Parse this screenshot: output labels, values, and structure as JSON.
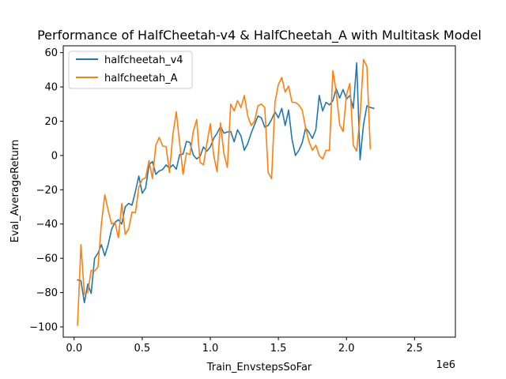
{
  "chart_data": {
    "type": "line",
    "title": "Performance of HalfCheetah-v4 & HalfCheetah_A with Multitask Model",
    "xlabel": "Train_EnvstepsSoFar",
    "ylabel": "Eval_AverageReturn",
    "x_offset_label": "1e6",
    "xlim": [
      -0.08,
      2.8
    ],
    "ylim": [
      -106,
      64
    ],
    "xticks": [
      0.0,
      0.5,
      1.0,
      1.5,
      2.0,
      2.5
    ],
    "xtick_labels": [
      "0.0",
      "0.5",
      "1.0",
      "1.5",
      "2.0",
      "2.5"
    ],
    "yticks": [
      -100,
      -80,
      -60,
      -40,
      -20,
      0,
      20,
      40,
      60
    ],
    "ytick_labels": [
      "−100",
      "−80",
      "−60",
      "−40",
      "−20",
      "0",
      "20",
      "40",
      "60"
    ],
    "grid": false,
    "legend_position": "top-left",
    "series": [
      {
        "name": "halfcheetah_v4",
        "color": "#1f77b4",
        "points": [
          [
            0.025,
            -72.6
          ],
          [
            0.05,
            -73
          ],
          [
            0.075,
            -85.9
          ],
          [
            0.1,
            -75
          ],
          [
            0.125,
            -80.5
          ],
          [
            0.15,
            -60
          ],
          [
            0.175,
            -57
          ],
          [
            0.2,
            -52
          ],
          [
            0.225,
            -58.5
          ],
          [
            0.25,
            -52
          ],
          [
            0.275,
            -43
          ],
          [
            0.3,
            -39
          ],
          [
            0.325,
            -37.5
          ],
          [
            0.35,
            -40
          ],
          [
            0.375,
            -30
          ],
          [
            0.4,
            -28
          ],
          [
            0.425,
            -29
          ],
          [
            0.45,
            -21
          ],
          [
            0.475,
            -12
          ],
          [
            0.5,
            -22
          ],
          [
            0.525,
            -19
          ],
          [
            0.55,
            -5.5
          ],
          [
            0.575,
            -3.5
          ],
          [
            0.6,
            -11
          ],
          [
            0.625,
            -9
          ],
          [
            0.65,
            -8.2
          ],
          [
            0.675,
            -5.5
          ],
          [
            0.7,
            -7.5
          ],
          [
            0.725,
            -5.4
          ],
          [
            0.75,
            -8
          ],
          [
            0.775,
            0.5
          ],
          [
            0.8,
            0.8
          ],
          [
            0.825,
            8.2
          ],
          [
            0.85,
            7.6
          ],
          [
            0.875,
            0.3
          ],
          [
            0.9,
            -2
          ],
          [
            0.925,
            -0.5
          ],
          [
            0.95,
            5
          ],
          [
            0.975,
            2.5
          ],
          [
            1.0,
            5
          ],
          [
            1.025,
            10
          ],
          [
            1.05,
            13
          ],
          [
            1.075,
            17
          ],
          [
            1.1,
            13
          ],
          [
            1.125,
            13.7
          ],
          [
            1.15,
            14
          ],
          [
            1.175,
            8
          ],
          [
            1.2,
            15
          ],
          [
            1.225,
            11.5
          ],
          [
            1.25,
            3
          ],
          [
            1.275,
            7
          ],
          [
            1.3,
            13
          ],
          [
            1.325,
            18
          ],
          [
            1.35,
            23
          ],
          [
            1.375,
            22
          ],
          [
            1.4,
            16.5
          ],
          [
            1.425,
            17.5
          ],
          [
            1.45,
            21
          ],
          [
            1.475,
            25.5
          ],
          [
            1.5,
            22
          ],
          [
            1.525,
            27.5
          ],
          [
            1.55,
            17.5
          ],
          [
            1.575,
            26.5
          ],
          [
            1.6,
            9.5
          ],
          [
            1.625,
            0
          ],
          [
            1.65,
            3
          ],
          [
            1.675,
            7.5
          ],
          [
            1.7,
            16
          ],
          [
            1.725,
            13.5
          ],
          [
            1.75,
            10
          ],
          [
            1.775,
            15
          ],
          [
            1.8,
            35
          ],
          [
            1.825,
            26
          ],
          [
            1.85,
            31
          ],
          [
            1.875,
            29.5
          ],
          [
            1.9,
            32
          ],
          [
            1.925,
            39
          ],
          [
            1.95,
            33.5
          ],
          [
            1.975,
            38.5
          ],
          [
            2.0,
            33
          ],
          [
            2.025,
            35
          ],
          [
            2.05,
            27.5
          ],
          [
            2.075,
            54
          ],
          [
            2.1,
            -2.5
          ],
          [
            2.125,
            18
          ],
          [
            2.15,
            29
          ],
          [
            2.175,
            28
          ],
          [
            2.2,
            27.5
          ]
        ]
      },
      {
        "name": "halfcheetah_A",
        "color": "#ff7f0e",
        "points": [
          [
            0.025,
            -99
          ],
          [
            0.05,
            -52
          ],
          [
            0.075,
            -81
          ],
          [
            0.1,
            -80
          ],
          [
            0.125,
            -67
          ],
          [
            0.15,
            -67.5
          ],
          [
            0.175,
            -65
          ],
          [
            0.2,
            -40
          ],
          [
            0.225,
            -23
          ],
          [
            0.25,
            -32
          ],
          [
            0.275,
            -40
          ],
          [
            0.3,
            -39
          ],
          [
            0.325,
            -48
          ],
          [
            0.35,
            -28
          ],
          [
            0.375,
            -46
          ],
          [
            0.4,
            -43
          ],
          [
            0.425,
            -33
          ],
          [
            0.45,
            -33.5
          ],
          [
            0.475,
            -18.5
          ],
          [
            0.5,
            -14
          ],
          [
            0.525,
            -13
          ],
          [
            0.55,
            -3
          ],
          [
            0.575,
            -13.5
          ],
          [
            0.6,
            6
          ],
          [
            0.625,
            10.5
          ],
          [
            0.65,
            5.5
          ],
          [
            0.675,
            5.2
          ],
          [
            0.7,
            -10
          ],
          [
            0.725,
            12
          ],
          [
            0.75,
            25.5
          ],
          [
            0.775,
            7
          ],
          [
            0.8,
            -11
          ],
          [
            0.825,
            1.5
          ],
          [
            0.85,
            0.5
          ],
          [
            0.875,
            14
          ],
          [
            0.9,
            21
          ],
          [
            0.925,
            -4
          ],
          [
            0.95,
            -5.5
          ],
          [
            0.975,
            7
          ],
          [
            1.0,
            18.5
          ],
          [
            1.025,
            0
          ],
          [
            1.05,
            -9.5
          ],
          [
            1.075,
            19
          ],
          [
            1.1,
            1
          ],
          [
            1.125,
            -7
          ],
          [
            1.15,
            30
          ],
          [
            1.175,
            26
          ],
          [
            1.2,
            32
          ],
          [
            1.225,
            28
          ],
          [
            1.25,
            35
          ],
          [
            1.275,
            23
          ],
          [
            1.3,
            17.5
          ],
          [
            1.325,
            20
          ],
          [
            1.35,
            29
          ],
          [
            1.375,
            30
          ],
          [
            1.4,
            28
          ],
          [
            1.425,
            -10
          ],
          [
            1.45,
            -13.5
          ],
          [
            1.475,
            31
          ],
          [
            1.5,
            41.5
          ],
          [
            1.525,
            45.5
          ],
          [
            1.55,
            37
          ],
          [
            1.575,
            40.5
          ],
          [
            1.6,
            31
          ],
          [
            1.625,
            31
          ],
          [
            1.65,
            29.5
          ],
          [
            1.675,
            26.5
          ],
          [
            1.7,
            16
          ],
          [
            1.725,
            8
          ],
          [
            1.75,
            3
          ],
          [
            1.775,
            6
          ],
          [
            1.8,
            0
          ],
          [
            1.825,
            -2
          ],
          [
            1.85,
            3
          ],
          [
            1.875,
            3
          ],
          [
            1.9,
            49.5
          ],
          [
            1.925,
            37
          ],
          [
            1.95,
            18
          ],
          [
            1.975,
            14
          ],
          [
            2.0,
            35.5
          ],
          [
            2.025,
            42
          ],
          [
            2.05,
            6
          ],
          [
            2.075,
            2.5
          ],
          [
            2.1,
            23
          ],
          [
            2.125,
            56
          ],
          [
            2.15,
            52
          ],
          [
            2.175,
            4
          ]
        ]
      }
    ]
  }
}
